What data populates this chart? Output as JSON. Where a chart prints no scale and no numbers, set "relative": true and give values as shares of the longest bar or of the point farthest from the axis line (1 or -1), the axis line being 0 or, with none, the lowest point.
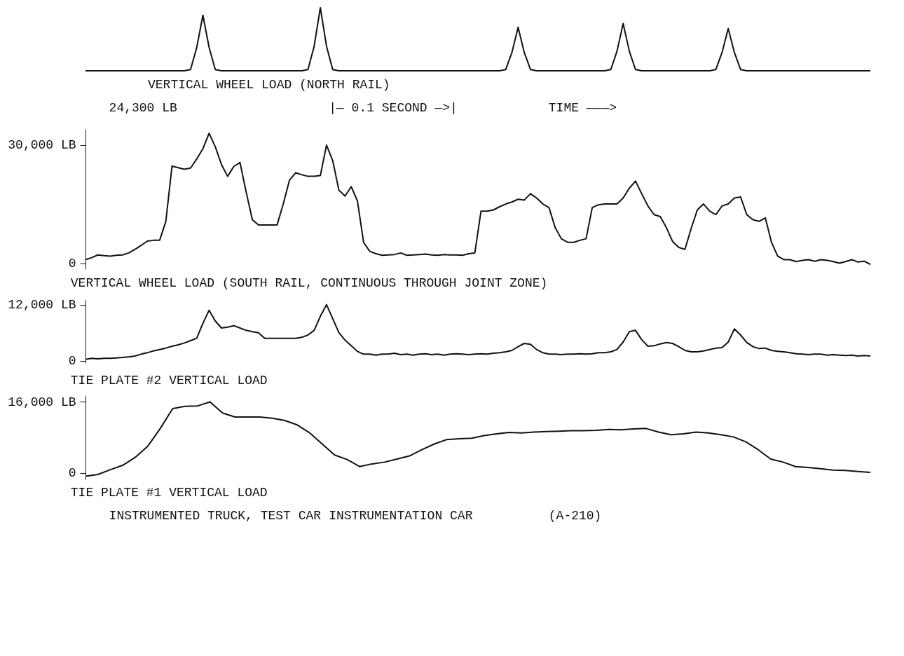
{
  "chart_data": [
    {
      "type": "line",
      "title": "VERTICAL WHEEL LOAD (NORTH RAIL)",
      "tick_labels": false,
      "relative": true,
      "annotations": [
        "24,300 LB",
        "|— 0.1 SECOND —>|",
        "TIME ———>"
      ],
      "categories": [
        null,
        null,
        null,
        null,
        null,
        null,
        null,
        null,
        null,
        null,
        null,
        null,
        null,
        null,
        null,
        null,
        null,
        null,
        null,
        null,
        null,
        null,
        null,
        null,
        null,
        null,
        null,
        null,
        null,
        null,
        null,
        null,
        null,
        null,
        null,
        null,
        null,
        null,
        null,
        null,
        null,
        null,
        null,
        null,
        null,
        null,
        null,
        null,
        null,
        null,
        null,
        null,
        null,
        null,
        null,
        null,
        null,
        null,
        null,
        null,
        null,
        null,
        null,
        null,
        null,
        null,
        null,
        null,
        null,
        null,
        null,
        null,
        null,
        null,
        null,
        null,
        null,
        null,
        null,
        null,
        null,
        null,
        null,
        null,
        null,
        null,
        null,
        null,
        null,
        null,
        null,
        null,
        null,
        null,
        null,
        null,
        null,
        null,
        null,
        null,
        null,
        null,
        null,
        null,
        null,
        null,
        null,
        null,
        null,
        null,
        null,
        null,
        null,
        null,
        null,
        null,
        null,
        null,
        null,
        null,
        null,
        null,
        null,
        null,
        null,
        null,
        null,
        null
      ],
      "series": [
        {
          "color": "#111111",
          "values": [
            0,
            0,
            0,
            0,
            0,
            0,
            0,
            0,
            0,
            0,
            0,
            0,
            0,
            0,
            0,
            0,
            0,
            0.02,
            0.37,
            0.88,
            0.37,
            0.02,
            0,
            0,
            0,
            0,
            0,
            0,
            0,
            0,
            0,
            0,
            0,
            0,
            0,
            0,
            0.02,
            0.39,
            1,
            0.39,
            0.02,
            0,
            0,
            0,
            0,
            0,
            0,
            0,
            0,
            0,
            0,
            0,
            0,
            0,
            0,
            0,
            0,
            0,
            0,
            0,
            0,
            0,
            0,
            0,
            0,
            0,
            0,
            0,
            0.02,
            0.29,
            0.69,
            0.29,
            0.02,
            0,
            0,
            0,
            0,
            0,
            0,
            0,
            0,
            0,
            0,
            0,
            0,
            0.02,
            0.31,
            0.75,
            0.31,
            0.02,
            0,
            0,
            0,
            0,
            0,
            0,
            0,
            0,
            0,
            0,
            0,
            0,
            0.02,
            0.29,
            0.67,
            0.29,
            0.02,
            0,
            0,
            0,
            0,
            0,
            0,
            0,
            0,
            0,
            0,
            0,
            0,
            0,
            0,
            0,
            0,
            0,
            0,
            0,
            0,
            0
          ]
        }
      ]
    },
    {
      "type": "line",
      "title": "VERTICAL WHEEL LOAD (SOUTH RAIL, CONTINUOUS THROUGH JOINT ZONE)",
      "tick_labels": "y",
      "ylim": [
        -1500,
        34000
      ],
      "yticks": [
        {
          "value": 30000,
          "label": "30,000 LB"
        },
        {
          "value": 0,
          "label": "0"
        }
      ],
      "categories": [
        null,
        null,
        null,
        null,
        null,
        null,
        null,
        null,
        null,
        null,
        null,
        null,
        null,
        null,
        null,
        null,
        null,
        null,
        null,
        null,
        null,
        null,
        null,
        null,
        null,
        null,
        null,
        null,
        null,
        null,
        null,
        null,
        null,
        null,
        null,
        null,
        null,
        null,
        null,
        null,
        null,
        null,
        null,
        null,
        null,
        null,
        null,
        null,
        null,
        null,
        null,
        null,
        null,
        null,
        null,
        null,
        null,
        null,
        null,
        null,
        null,
        null,
        null,
        null,
        null,
        null,
        null,
        null,
        null,
        null,
        null,
        null,
        null,
        null,
        null,
        null,
        null,
        null,
        null,
        null,
        null,
        null,
        null,
        null,
        null,
        null,
        null,
        null,
        null,
        null,
        null,
        null,
        null,
        null,
        null,
        null,
        null,
        null,
        null,
        null,
        null,
        null,
        null,
        null,
        null,
        null,
        null,
        null,
        null,
        null,
        null,
        null,
        null,
        null,
        null,
        null,
        null,
        null,
        null,
        null,
        null,
        null,
        null,
        null,
        null,
        null,
        null,
        null
      ],
      "series": [
        {
          "color": "#111111",
          "values": [
            900,
            1400,
            2100,
            1900,
            1800,
            2000,
            2100,
            2600,
            3500,
            4500,
            5600,
            5800,
            5800,
            10600,
            24600,
            24200,
            23800,
            24100,
            26400,
            29000,
            32900,
            29500,
            25000,
            22000,
            24500,
            25500,
            18000,
            11000,
            9700,
            9700,
            9700,
            9700,
            15000,
            21000,
            22900,
            22400,
            22000,
            22000,
            22200,
            29900,
            26000,
            18500,
            17000,
            19400,
            15800,
            5300,
            3000,
            2400,
            2000,
            2100,
            2200,
            2600,
            2000,
            2100,
            2200,
            2300,
            2100,
            2000,
            2200,
            2100,
            2100,
            2000,
            2400,
            2600,
            13200,
            13200,
            13500,
            14300,
            15000,
            15500,
            16200,
            16000,
            17600,
            16500,
            15000,
            14100,
            9000,
            6200,
            5300,
            5300,
            5800,
            6200,
            14100,
            14800,
            15000,
            15000,
            15000,
            16500,
            19000,
            20800,
            17600,
            14500,
            12300,
            11800,
            9000,
            5500,
            4000,
            3500,
            8800,
            13500,
            15000,
            13200,
            12300,
            14500,
            15000,
            16500,
            16800,
            12300,
            11000,
            10600,
            11500,
            5300,
            1800,
            900,
            900,
            400,
            700,
            900,
            500,
            900,
            700,
            400,
            0,
            400,
            900,
            300,
            500,
            -300
          ]
        }
      ]
    },
    {
      "type": "line",
      "title": "TIE PLATE #2 VERTICAL LOAD",
      "tick_labels": "y",
      "ylim": [
        -500,
        13000
      ],
      "yticks": [
        {
          "value": 12000,
          "label": "12,000 LB"
        },
        {
          "value": 0,
          "label": "0"
        }
      ],
      "categories": [
        null,
        null,
        null,
        null,
        null,
        null,
        null,
        null,
        null,
        null,
        null,
        null,
        null,
        null,
        null,
        null,
        null,
        null,
        null,
        null,
        null,
        null,
        null,
        null,
        null,
        null,
        null,
        null,
        null,
        null,
        null,
        null,
        null,
        null,
        null,
        null,
        null,
        null,
        null,
        null,
        null,
        null,
        null,
        null,
        null,
        null,
        null,
        null,
        null,
        null,
        null,
        null,
        null,
        null,
        null,
        null,
        null,
        null,
        null,
        null,
        null,
        null,
        null,
        null,
        null,
        null,
        null,
        null,
        null,
        null,
        null,
        null,
        null,
        null,
        null,
        null,
        null,
        null,
        null,
        null,
        null,
        null,
        null,
        null,
        null,
        null,
        null,
        null,
        null,
        null,
        null,
        null,
        null,
        null,
        null,
        null,
        null,
        null,
        null,
        null,
        null,
        null,
        null,
        null,
        null,
        null,
        null,
        null,
        null,
        null,
        null,
        null,
        null,
        null,
        null,
        null,
        null,
        null,
        null,
        null,
        null,
        null,
        null,
        null,
        null,
        null,
        null,
        null
      ],
      "series": [
        {
          "color": "#111111",
          "values": [
            300,
            500,
            400,
            500,
            500,
            600,
            700,
            800,
            1000,
            1400,
            1700,
            2100,
            2400,
            2700,
            3100,
            3400,
            3800,
            4300,
            4800,
            8000,
            10800,
            8500,
            7000,
            7200,
            7500,
            7000,
            6500,
            6200,
            6000,
            4800,
            4800,
            4800,
            4800,
            4800,
            4800,
            5000,
            5500,
            6500,
            9500,
            12000,
            9000,
            6000,
            4400,
            3200,
            2000,
            1400,
            1400,
            1200,
            1400,
            1400,
            1600,
            1300,
            1400,
            1200,
            1400,
            1500,
            1300,
            1400,
            1200,
            1400,
            1500,
            1400,
            1300,
            1400,
            1500,
            1400,
            1600,
            1700,
            1900,
            2200,
            3000,
            3700,
            3500,
            2400,
            1700,
            1400,
            1400,
            1300,
            1400,
            1400,
            1500,
            1400,
            1500,
            1700,
            1700,
            1900,
            2400,
            4000,
            6200,
            6500,
            4500,
            3100,
            3200,
            3600,
            3900,
            3700,
            3000,
            2200,
            1900,
            1900,
            2100,
            2400,
            2700,
            2800,
            4000,
            6800,
            5500,
            3900,
            3000,
            2600,
            2700,
            2200,
            2000,
            1900,
            1700,
            1500,
            1400,
            1300,
            1400,
            1400,
            1200,
            1300,
            1200,
            1100,
            1200,
            1000,
            1100,
            1000
          ]
        }
      ]
    },
    {
      "type": "line",
      "title": "TIE PLATE #1 VERTICAL LOAD",
      "tick_labels": "y",
      "ylim": [
        -1500,
        17500
      ],
      "annotations": [
        "INSTRUMENTED TRUCK, TEST CAR",
        "INSTRUMENTATION CAR",
        "(A-210)"
      ],
      "yticks": [
        {
          "value": 16000,
          "label": "16,000 LB"
        },
        {
          "value": 0,
          "label": "0"
        }
      ],
      "categories": [
        null,
        null,
        null,
        null,
        null,
        null,
        null,
        null,
        null,
        null,
        null,
        null,
        null,
        null,
        null,
        null,
        null,
        null,
        null,
        null,
        null,
        null,
        null,
        null,
        null,
        null,
        null,
        null,
        null,
        null,
        null,
        null,
        null,
        null,
        null,
        null,
        null,
        null,
        null,
        null,
        null,
        null,
        null,
        null,
        null,
        null,
        null,
        null,
        null,
        null,
        null,
        null,
        null,
        null,
        null,
        null,
        null,
        null,
        null,
        null,
        null,
        null,
        null,
        null
      ],
      "series": [
        {
          "color": "#111111",
          "values": [
            -800,
            -400,
            700,
            1700,
            3500,
            6000,
            10000,
            14500,
            15000,
            15100,
            16000,
            13500,
            12600,
            12600,
            12600,
            12300,
            11800,
            10800,
            9000,
            6500,
            4000,
            3000,
            1400,
            2000,
            2400,
            3100,
            3800,
            5200,
            6500,
            7500,
            7700,
            7800,
            8400,
            8800,
            9100,
            9000,
            9200,
            9300,
            9400,
            9500,
            9500,
            9600,
            9800,
            9700,
            9900,
            10000,
            9200,
            8600,
            8800,
            9200,
            9000,
            8600,
            8100,
            7000,
            5200,
            3100,
            2400,
            1400,
            1200,
            900,
            600,
            500,
            300,
            100
          ]
        }
      ]
    }
  ]
}
